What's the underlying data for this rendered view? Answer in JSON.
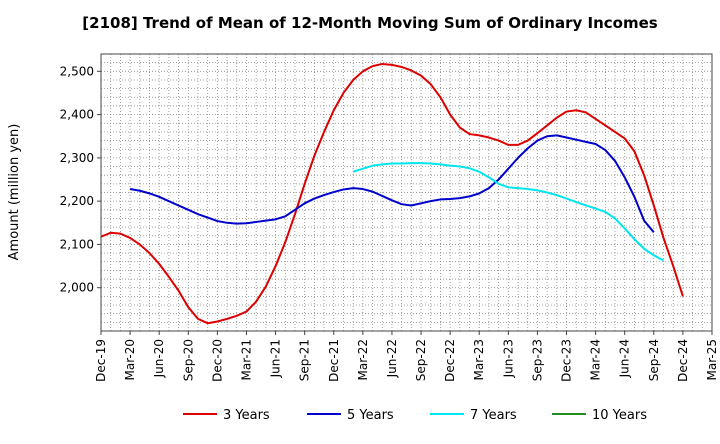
{
  "chart_data": {
    "type": "line",
    "title": "[2108]  Trend of Mean of 12-Month Moving Sum of Ordinary Incomes",
    "xlabel": "",
    "ylabel": "Amount (million yen)",
    "ylim": [
      1900,
      2540
    ],
    "yticks": [
      2000,
      2100,
      2200,
      2300,
      2400,
      2500
    ],
    "ytick_labels": [
      "2,000",
      "2,100",
      "2,200",
      "2,300",
      "2,400",
      "2,500"
    ],
    "xticks": [
      "Dec-19",
      "Mar-20",
      "Jun-20",
      "Sep-20",
      "Dec-20",
      "Mar-21",
      "Jun-21",
      "Sep-21",
      "Dec-21",
      "Mar-22",
      "Jun-22",
      "Sep-22",
      "Dec-22",
      "Mar-23",
      "Jun-23",
      "Sep-23",
      "Dec-23",
      "Mar-24",
      "Jun-24",
      "Sep-24",
      "Dec-24",
      "Mar-25"
    ],
    "x_start": "Dec-19",
    "x_end": "Mar-25",
    "grid": true,
    "legend_position": "bottom",
    "series": [
      {
        "name": "3 Years",
        "color": "#dd0000",
        "start": "Dec-19",
        "values": [
          2118,
          2127,
          2125,
          2115,
          2100,
          2080,
          2055,
          2025,
          1993,
          1955,
          1928,
          1918,
          1922,
          1928,
          1935,
          1945,
          1968,
          2003,
          2050,
          2105,
          2170,
          2240,
          2305,
          2360,
          2410,
          2450,
          2480,
          2500,
          2512,
          2517,
          2515,
          2510,
          2502,
          2490,
          2470,
          2440,
          2400,
          2370,
          2355,
          2352,
          2347,
          2340,
          2330,
          2330,
          2340,
          2357,
          2375,
          2393,
          2407,
          2410,
          2405,
          2390,
          2375,
          2360,
          2345,
          2315,
          2260,
          2190,
          2115,
          2050,
          1980
        ]
      },
      {
        "name": "5 Years",
        "color": "#0000cc",
        "start": "Dec-19",
        "values": [
          null,
          null,
          null,
          2228,
          2224,
          2218,
          2210,
          2200,
          2190,
          2180,
          2170,
          2162,
          2154,
          2150,
          2148,
          2149,
          2152,
          2155,
          2158,
          2165,
          2180,
          2195,
          2206,
          2214,
          2221,
          2227,
          2230,
          2228,
          2222,
          2212,
          2202,
          2193,
          2190,
          2195,
          2200,
          2204,
          2205,
          2207,
          2211,
          2218,
          2230,
          2250,
          2275,
          2300,
          2322,
          2340,
          2350,
          2352,
          2347,
          2342,
          2337,
          2332,
          2318,
          2293,
          2255,
          2210,
          2155,
          2128
        ]
      },
      {
        "name": "7 Years",
        "color": "#00e5ee",
        "start": "Dec-19",
        "values": [
          null,
          null,
          null,
          null,
          null,
          null,
          null,
          null,
          null,
          null,
          null,
          null,
          null,
          null,
          null,
          null,
          null,
          null,
          null,
          null,
          null,
          null,
          null,
          null,
          null,
          null,
          2268,
          2275,
          2282,
          2285,
          2287,
          2287,
          2288,
          2288,
          2287,
          2285,
          2282,
          2280,
          2276,
          2268,
          2255,
          2240,
          2232,
          2230,
          2228,
          2225,
          2220,
          2214,
          2206,
          2198,
          2190,
          2183,
          2175,
          2160,
          2137,
          2112,
          2090,
          2075,
          2063
        ]
      },
      {
        "name": "10 Years",
        "color": "#228b22",
        "start": "Dec-19",
        "values": []
      }
    ]
  }
}
